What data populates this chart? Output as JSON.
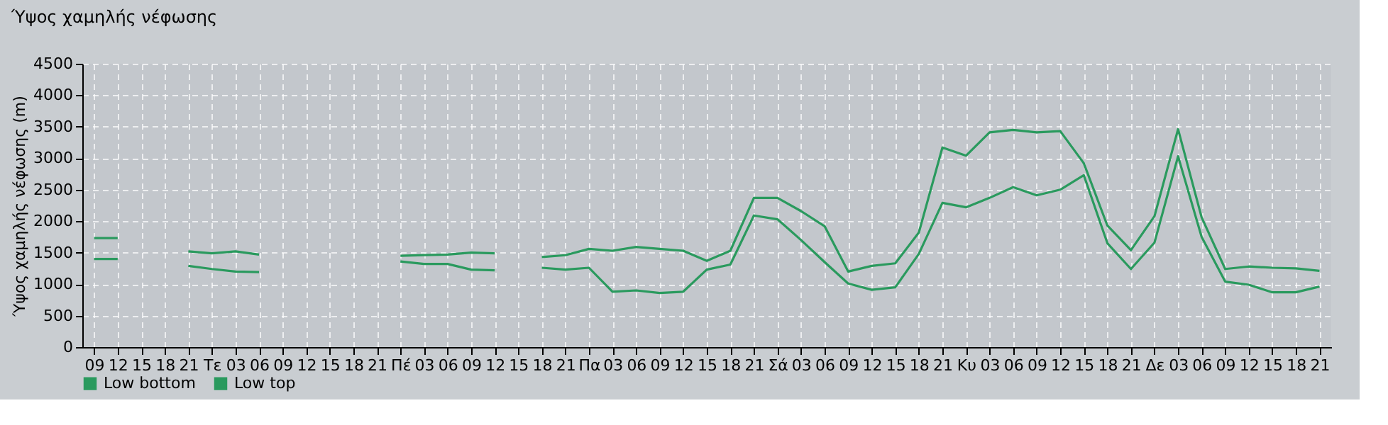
{
  "chart_data": {
    "type": "line",
    "title": "Ύψος χαμηλής νέφωσης",
    "ylabel": "Ύψος χαμηλής νέφωσης (m)",
    "categories": [
      "09",
      "12",
      "15",
      "18",
      "21",
      "Τε",
      "03",
      "06",
      "09",
      "12",
      "15",
      "18",
      "21",
      "Πέ",
      "03",
      "06",
      "09",
      "12",
      "15",
      "18",
      "21",
      "Πα",
      "03",
      "06",
      "09",
      "12",
      "15",
      "18",
      "21",
      "Σά",
      "03",
      "06",
      "09",
      "12",
      "15",
      "18",
      "21",
      "Κυ",
      "03",
      "06",
      "09",
      "12",
      "15",
      "18",
      "21",
      "Δε",
      "03",
      "06",
      "09",
      "12",
      "15",
      "18",
      "21"
    ],
    "series": [
      {
        "name": "Low bottom",
        "color": "#2a9a5e",
        "values": [
          1400,
          1400,
          null,
          null,
          1290,
          1240,
          1200,
          1190,
          null,
          null,
          null,
          null,
          null,
          1360,
          1320,
          1320,
          1230,
          1220,
          null,
          1260,
          1230,
          1260,
          880,
          900,
          860,
          880,
          1230,
          1310,
          2090,
          2030,
          1700,
          1350,
          1010,
          910,
          950,
          1480,
          2290,
          2220,
          2370,
          2540,
          2410,
          2500,
          2730,
          1650,
          1240,
          1660,
          3030,
          1750,
          1040,
          990,
          870,
          870,
          960
        ]
      },
      {
        "name": "Low top",
        "color": "#2a9a5e",
        "values": [
          1730,
          1730,
          null,
          null,
          1520,
          1490,
          1520,
          1470,
          null,
          null,
          null,
          null,
          null,
          1450,
          1460,
          1470,
          1500,
          1490,
          null,
          1430,
          1460,
          1560,
          1530,
          1590,
          1560,
          1530,
          1370,
          1530,
          2370,
          2370,
          2160,
          1920,
          1200,
          1290,
          1330,
          1820,
          3170,
          3040,
          3410,
          3450,
          3410,
          3430,
          2920,
          1930,
          1540,
          2080,
          3460,
          2060,
          1240,
          1280,
          1260,
          1250,
          1210
        ]
      }
    ],
    "ylim": [
      0,
      4500
    ],
    "yticks": [
      0,
      500,
      1000,
      1500,
      2000,
      2500,
      3000,
      3500,
      4000,
      4500
    ],
    "grid": true,
    "legend": "bottom left",
    "marker": "none",
    "line_style": "solid"
  }
}
